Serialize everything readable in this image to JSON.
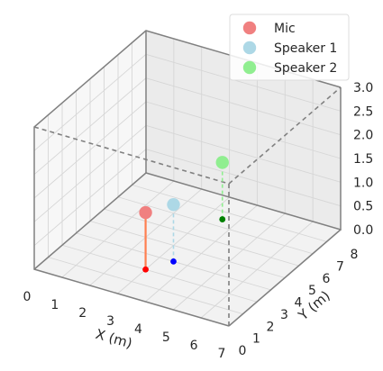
{
  "chart_data": {
    "type": "scatter",
    "projection": "3d",
    "xlabel": "X (m)",
    "ylabel": "Y (m)",
    "zlabel": "",
    "xlim": [
      0,
      7
    ],
    "ylim": [
      0,
      8
    ],
    "zlim": [
      0,
      3
    ],
    "x_ticks": [
      "0",
      "1",
      "2",
      "3",
      "4",
      "5",
      "6",
      "7"
    ],
    "y_ticks": [
      "0",
      "1",
      "2",
      "3",
      "4",
      "5",
      "6",
      "7",
      "8"
    ],
    "z_ticks": [
      "0.0",
      "0.5",
      "1.0",
      "1.5",
      "2.0",
      "2.5",
      "3.0"
    ],
    "grid": true,
    "legend_position": "top-right",
    "series": [
      {
        "name": "Mic",
        "x": 3.0,
        "y": 2.0,
        "z": 1.2,
        "color": "#f08080",
        "stem_color": "#ff7f50",
        "stem_style": "solid",
        "base_color": "#ff0000"
      },
      {
        "name": "Speaker 1",
        "x": 3.5,
        "y": 3.0,
        "z": 1.2,
        "color": "#add8e6",
        "stem_color": "#add8e6",
        "stem_style": "dashed",
        "base_color": "#0000ff"
      },
      {
        "name": "Speaker 2",
        "x": 3.5,
        "y": 6.5,
        "z": 1.2,
        "color": "#90ee90",
        "stem_color": "#90ee90",
        "stem_style": "dashed",
        "base_color": "#008000"
      }
    ],
    "room_outline": {
      "x": 7,
      "y": 8,
      "z": 3,
      "color": "#808080",
      "style": "dashed"
    }
  }
}
